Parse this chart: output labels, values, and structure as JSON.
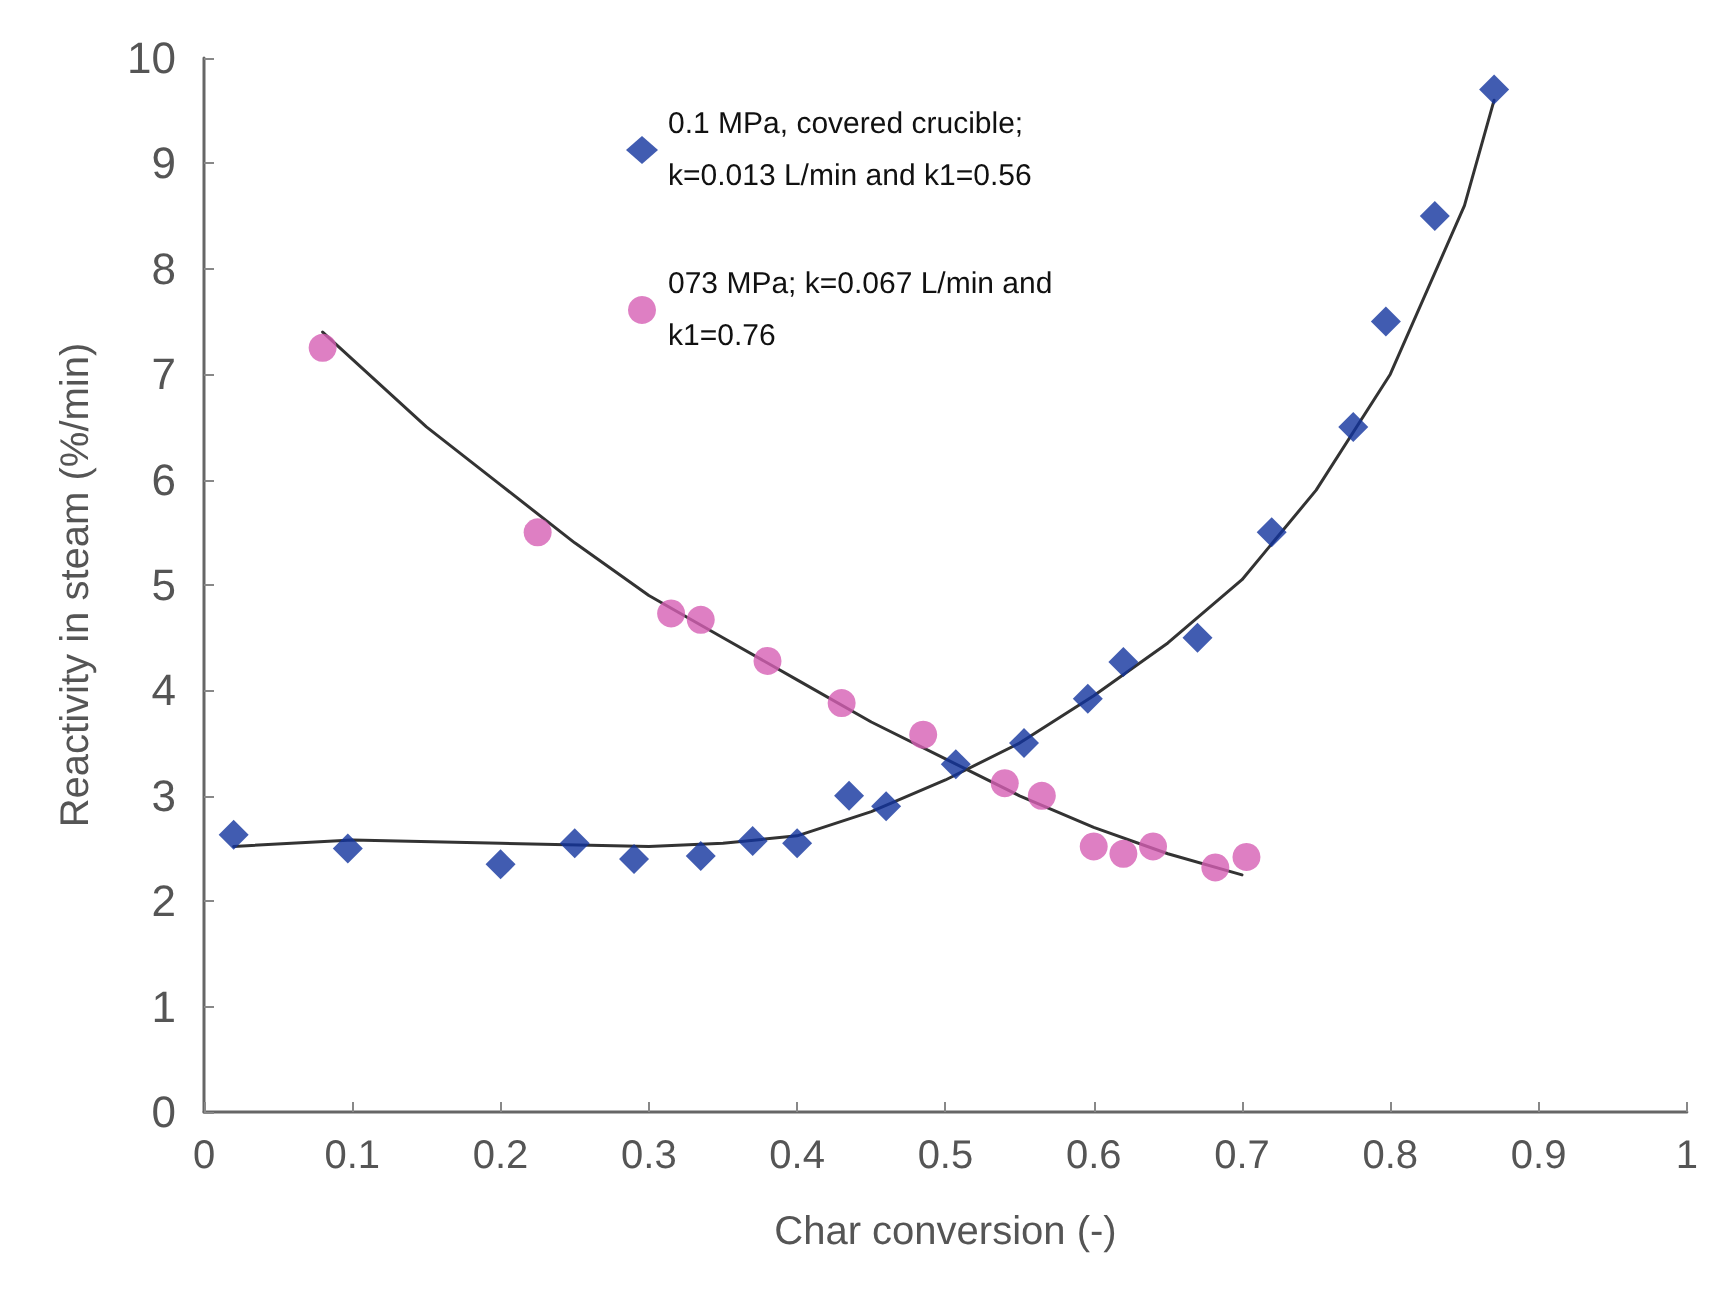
{
  "chart_data": {
    "type": "scatter",
    "xlabel": "Char conversion (-)",
    "ylabel": "Reactivity in steam (%/min)",
    "xlim": [
      0,
      1
    ],
    "xticks": [
      0,
      0.1,
      0.2,
      0.3,
      0.4,
      0.5,
      0.6,
      0.7,
      0.8,
      0.9,
      1
    ],
    "ylim": [
      0,
      10
    ],
    "yticks": [
      0,
      1,
      2,
      3,
      4,
      5,
      6,
      7,
      8,
      9,
      10
    ],
    "grid": false,
    "legend": "top",
    "series": [
      {
        "name": "0.1 MPa, covered crucible; k=0.013 L/min and k1=0.56",
        "type": "scatter",
        "marker": "diamond",
        "color": "#12339e",
        "x": [
          0.02,
          0.097,
          0.2,
          0.25,
          0.29,
          0.335,
          0.37,
          0.4,
          0.435,
          0.46,
          0.507,
          0.553,
          0.596,
          0.62,
          0.67,
          0.72,
          0.775,
          0.797,
          0.83,
          0.87
        ],
        "values": [
          2.63,
          2.5,
          2.35,
          2.55,
          2.4,
          2.43,
          2.57,
          2.55,
          3.0,
          2.9,
          3.3,
          3.5,
          3.92,
          4.27,
          4.5,
          5.5,
          6.5,
          7.5,
          8.5,
          9.7
        ]
      },
      {
        "name": "073 MPa; k=0.067 L/min and k1=0.76",
        "type": "scatter",
        "marker": "circle",
        "color": "#d65fb4",
        "x": [
          0.08,
          0.225,
          0.315,
          0.335,
          0.38,
          0.43,
          0.485,
          0.54,
          0.565,
          0.6,
          0.62,
          0.64,
          0.682,
          0.703
        ],
        "values": [
          7.25,
          5.5,
          4.73,
          4.67,
          4.28,
          3.88,
          3.58,
          3.12,
          3.0,
          2.52,
          2.45,
          2.52,
          2.32,
          2.42
        ]
      },
      {
        "type": "line",
        "marker": "none",
        "line_style": "solid",
        "color": "#333333",
        "x": [
          0.02,
          0.1,
          0.2,
          0.3,
          0.35,
          0.4,
          0.45,
          0.5,
          0.55,
          0.6,
          0.65,
          0.7,
          0.75,
          0.8,
          0.85,
          0.87
        ],
        "values": [
          2.52,
          2.58,
          2.55,
          2.52,
          2.55,
          2.62,
          2.85,
          3.15,
          3.5,
          3.95,
          4.45,
          5.05,
          5.9,
          7.0,
          8.6,
          9.6
        ]
      },
      {
        "type": "line",
        "marker": "none",
        "line_style": "solid",
        "color": "#333333",
        "x": [
          0.08,
          0.15,
          0.2,
          0.25,
          0.3,
          0.35,
          0.4,
          0.45,
          0.5,
          0.55,
          0.6,
          0.65,
          0.7
        ],
        "values": [
          7.4,
          6.5,
          5.95,
          5.4,
          4.9,
          4.5,
          4.1,
          3.7,
          3.35,
          3.0,
          2.7,
          2.45,
          2.25
        ]
      }
    ]
  }
}
